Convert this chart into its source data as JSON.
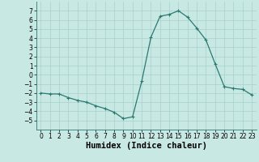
{
  "x": [
    0,
    1,
    2,
    3,
    4,
    5,
    6,
    7,
    8,
    9,
    10,
    11,
    12,
    13,
    14,
    15,
    16,
    17,
    18,
    19,
    20,
    21,
    22,
    23
  ],
  "y": [
    -2,
    -2.1,
    -2.1,
    -2.5,
    -2.8,
    -3.0,
    -3.4,
    -3.7,
    -4.1,
    -4.8,
    -4.6,
    -0.7,
    4.1,
    6.4,
    6.6,
    7.0,
    6.3,
    5.1,
    3.8,
    1.2,
    -1.3,
    -1.5,
    -1.6,
    -2.2
  ],
  "line_color": "#2a7a70",
  "marker": "+",
  "bg_color": "#c8e8e4",
  "grid_color": "#a8d0cc",
  "xlabel": "Humidex (Indice chaleur)",
  "ylim": [
    -6,
    8
  ],
  "xlim": [
    -0.5,
    23.5
  ],
  "yticks": [
    -5,
    -4,
    -3,
    -2,
    -1,
    0,
    1,
    2,
    3,
    4,
    5,
    6,
    7
  ],
  "xticks": [
    0,
    1,
    2,
    3,
    4,
    5,
    6,
    7,
    8,
    9,
    10,
    11,
    12,
    13,
    14,
    15,
    16,
    17,
    18,
    19,
    20,
    21,
    22,
    23
  ],
  "tick_fontsize": 5.5,
  "xlabel_fontsize": 7.5,
  "line_width": 0.9,
  "marker_size": 3.0
}
